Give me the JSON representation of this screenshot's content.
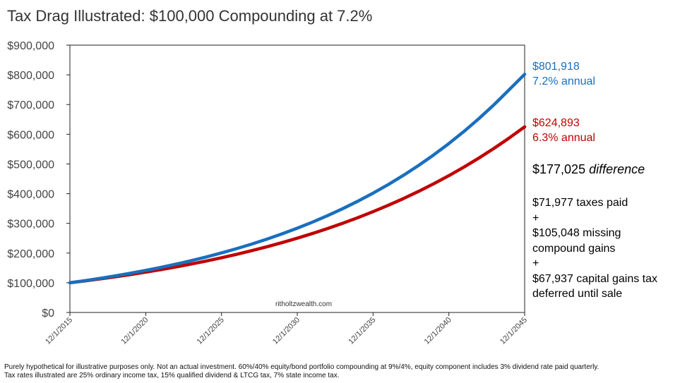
{
  "chart_data": {
    "type": "line",
    "title": "Tax Drag Illustrated: $100,000 Compounding at 7.2%",
    "xlabel": "",
    "ylabel": "",
    "x_start": "12/1/2015",
    "x_end": "12/1/2045",
    "xticks": [
      "12/1/2015",
      "12/1/2020",
      "12/1/2025",
      "12/1/2030",
      "12/1/2035",
      "12/1/2040",
      "12/1/2045"
    ],
    "ylim": [
      0,
      900000
    ],
    "yticks": [
      "$0",
      "$100,000",
      "$200,000",
      "$300,000",
      "$400,000",
      "$500,000",
      "$600,000",
      "$700,000",
      "$800,000",
      "$900,000"
    ],
    "ytick_values": [
      0,
      100000,
      200000,
      300000,
      400000,
      500000,
      600000,
      700000,
      800000,
      900000
    ],
    "grid": false,
    "series": [
      {
        "color": "#1a6fbe",
        "x": [
          "12/1/2015",
          "12/1/2016",
          "12/1/2017",
          "12/1/2018",
          "12/1/2019",
          "12/1/2020",
          "12/1/2021",
          "12/1/2022",
          "12/1/2023",
          "12/1/2024",
          "12/1/2025",
          "12/1/2026",
          "12/1/2027",
          "12/1/2028",
          "12/1/2029",
          "12/1/2030",
          "12/1/2031",
          "12/1/2032",
          "12/1/2033",
          "12/1/2034",
          "12/1/2035",
          "12/1/2036",
          "12/1/2037",
          "12/1/2038",
          "12/1/2039",
          "12/1/2040",
          "12/1/2041",
          "12/1/2042",
          "12/1/2043",
          "12/1/2044",
          "12/1/2045"
        ],
        "values": [
          100000,
          107200,
          114918,
          123193,
          132063,
          141571,
          151764,
          162691,
          174405,
          186962,
          200423,
          214854,
          230324,
          246907,
          264685,
          283742,
          304171,
          326072,
          349550,
          374717,
          401696,
          430618,
          461623,
          494860,
          530490,
          568685,
          609630,
          653524,
          700578,
          751020,
          801918
        ]
      },
      {
        "color": "#c00000",
        "x": [
          "12/1/2015",
          "12/1/2016",
          "12/1/2017",
          "12/1/2018",
          "12/1/2019",
          "12/1/2020",
          "12/1/2021",
          "12/1/2022",
          "12/1/2023",
          "12/1/2024",
          "12/1/2025",
          "12/1/2026",
          "12/1/2027",
          "12/1/2028",
          "12/1/2029",
          "12/1/2030",
          "12/1/2031",
          "12/1/2032",
          "12/1/2033",
          "12/1/2034",
          "12/1/2035",
          "12/1/2036",
          "12/1/2037",
          "12/1/2038",
          "12/1/2039",
          "12/1/2040",
          "12/1/2041",
          "12/1/2042",
          "12/1/2043",
          "12/1/2044",
          "12/1/2045"
        ],
        "values": [
          100000,
          106300,
          112997,
          120116,
          127683,
          135727,
          144278,
          153367,
          163029,
          173300,
          184218,
          195824,
          208161,
          221275,
          235215,
          250034,
          265786,
          282530,
          300330,
          319250,
          339363,
          360743,
          383470,
          407629,
          433309,
          460607,
          489626,
          520472,
          553262,
          588118,
          624893
        ]
      }
    ],
    "annotations": {
      "blue_value": "$801,918",
      "blue_rate": "7.2% annual",
      "red_value": "$624,893",
      "red_rate": "6.3% annual",
      "difference_amount": "$177,025",
      "difference_word": "difference",
      "taxes_paid": "$71,977 taxes paid",
      "plus_1": "+",
      "missing_gains_line1": "$105,048 missing",
      "missing_gains_line2": "compound gains",
      "plus_2": "+",
      "deferred_line1": "$67,937 capital gains tax",
      "deferred_line2": "deferred until sale"
    },
    "watermark": "ritholtzwealth.com"
  },
  "footnote": {
    "line1": "Purely hypothetical for illustrative purposes only.  Not an actual investment. 60%/40% equity/bond portfolio compounding at 9%/4%, equity component includes 3% dividend rate paid quarterly.",
    "line2": "Tax rates illustrated are 25% ordinary income tax, 15% qualified dividend & LTCG tax, 7% state income tax."
  }
}
